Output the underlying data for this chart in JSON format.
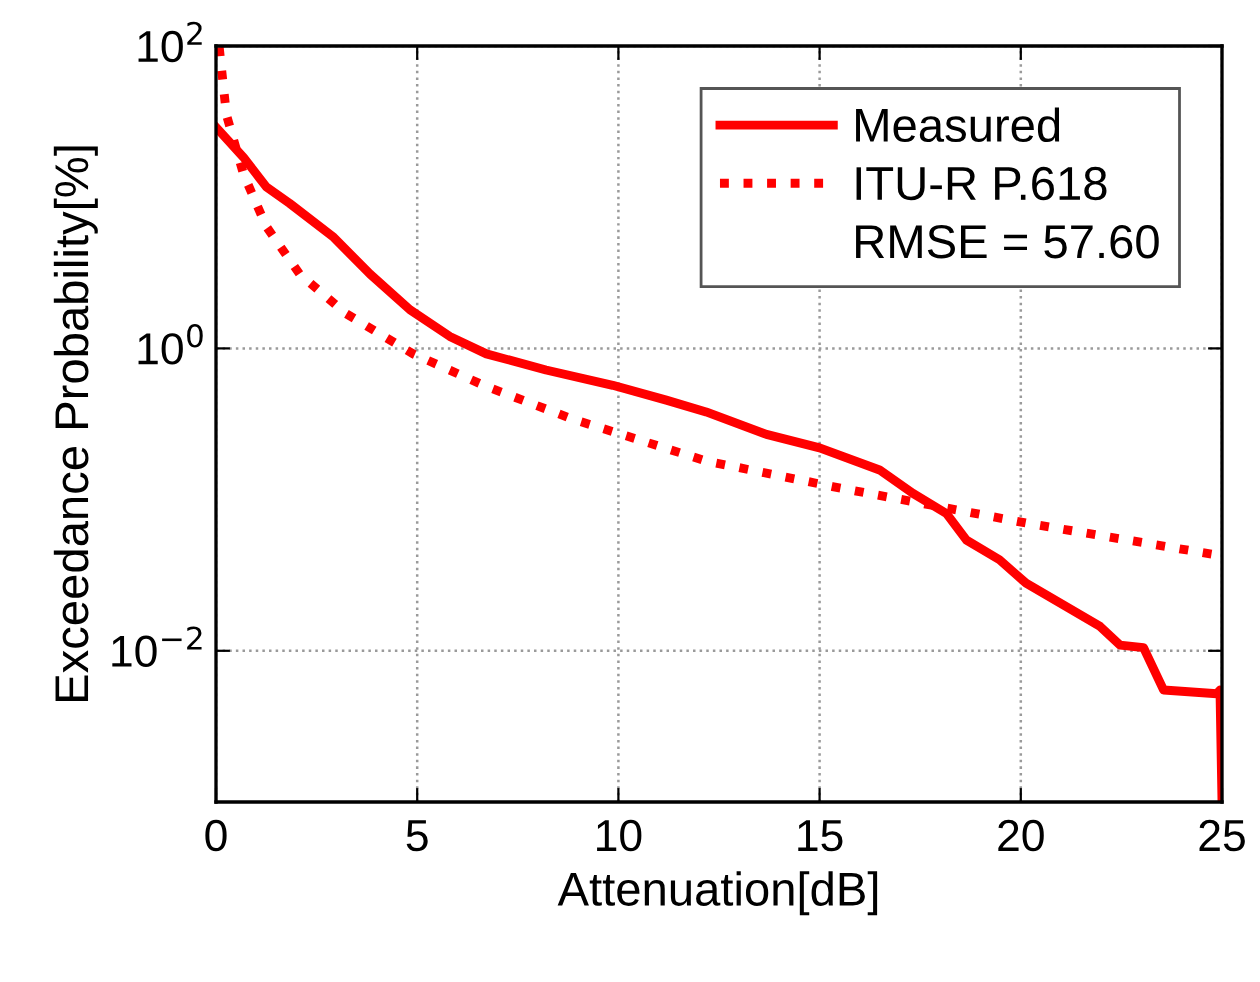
{
  "chart_data": {
    "type": "line",
    "xlabel": "Attenuation[dB]",
    "ylabel": "Exceedance Probability[%]",
    "log": "y",
    "grid": true,
    "legend": "top right",
    "marker": "none",
    "xlim": [
      0,
      25
    ],
    "xticks": [
      0,
      5,
      10,
      15,
      20,
      25
    ],
    "ylim": [
      0.001,
      100
    ],
    "yticks": [
      {
        "value": 100,
        "label": "10$^{2}$"
      },
      {
        "value": 1,
        "label": "10$^{0}$"
      },
      {
        "value": 0.01,
        "label": "10$^{−2}$"
      }
    ],
    "annotations": [
      "RMSE = 57.60"
    ],
    "series": [
      {
        "name": "Measured",
        "color": "#ff0000",
        "line_style": "solid",
        "x": [
          0,
          0.68,
          1.25,
          1.83,
          2.9,
          3.83,
          4.82,
          5.81,
          6.72,
          8.2,
          9.86,
          11.19,
          12.18,
          13.68,
          15.0,
          16.49,
          17.32,
          18.15,
          18.65,
          19.47,
          20.13,
          21.13,
          21.97,
          22.47,
          23.05,
          23.55,
          24.87,
          24.95,
          25
        ],
        "values": [
          29,
          18.4,
          11.7,
          9.1,
          5.5,
          3.1,
          1.8,
          1.2,
          0.92,
          0.72,
          0.57,
          0.455,
          0.38,
          0.27,
          0.22,
          0.157,
          0.11,
          0.081,
          0.054,
          0.04,
          0.028,
          0.0196,
          0.0145,
          0.0109,
          0.0105,
          0.0055,
          0.0052,
          0.0055,
          0.001
        ]
      },
      {
        "name": "ITU-R P.618",
        "color": "#ff0000",
        "line_style": "dotted",
        "x": [
          0.08,
          0.26,
          0.68,
          1.25,
          2.08,
          3.23,
          4.9,
          6.72,
          8.87,
          9.71,
          12.18,
          15.32,
          20.13,
          24.87
        ],
        "values": [
          98,
          35,
          14.3,
          6.4,
          3.1,
          1.7,
          0.92,
          0.56,
          0.34,
          0.29,
          0.18,
          0.122,
          0.07,
          0.043
        ]
      }
    ]
  }
}
